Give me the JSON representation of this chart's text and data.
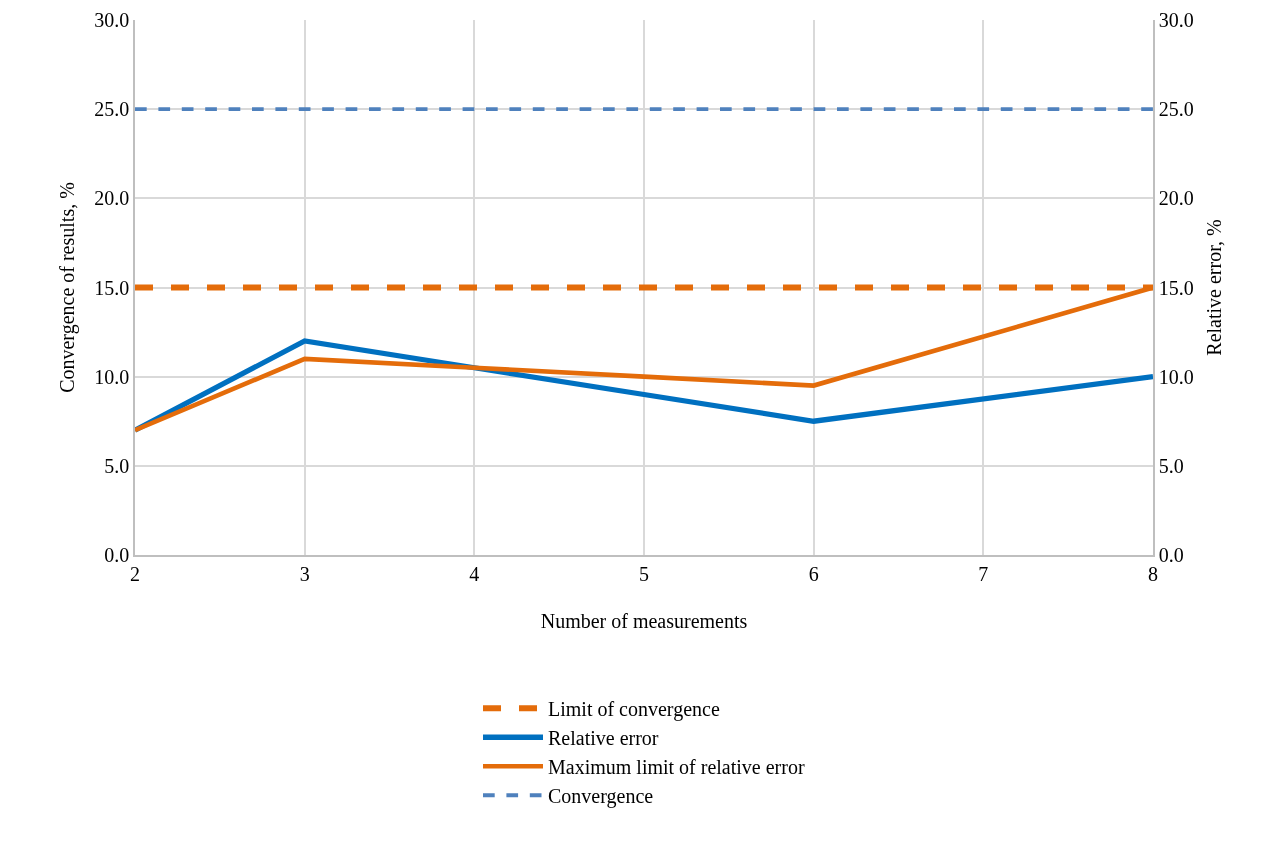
{
  "chart_data": {
    "type": "line",
    "xlabel": "Number of measurements",
    "ylabel": "Convergence of results, %",
    "y2label": "Relative error, %",
    "xlim": [
      2,
      8
    ],
    "xticks": [
      2,
      3,
      4,
      5,
      6,
      7,
      8
    ],
    "ylim": [
      0,
      30
    ],
    "yticks": [
      {
        "value": 0,
        "label": "0.0"
      },
      {
        "value": 5,
        "label": "5.0"
      },
      {
        "value": 10,
        "label": "10.0"
      },
      {
        "value": 15,
        "label": "15.0"
      },
      {
        "value": 20,
        "label": "20.0"
      },
      {
        "value": 25,
        "label": "25.0"
      },
      {
        "value": 30,
        "label": "30.0"
      }
    ],
    "y2lim": [
      0,
      30
    ],
    "y2ticks": [
      {
        "value": 0,
        "label": "0.0"
      },
      {
        "value": 5,
        "label": "5.0"
      },
      {
        "value": 10,
        "label": "10.0"
      },
      {
        "value": 15,
        "label": "15.0"
      },
      {
        "value": 20,
        "label": "20.0"
      },
      {
        "value": 25,
        "label": "25.0"
      },
      {
        "value": 30,
        "label": "30.0"
      }
    ],
    "grid": true,
    "legend": "bottom",
    "marker": "none",
    "series": [
      {
        "name": "Limit of convergence",
        "color": "#e46c0a",
        "line_style": "dashed",
        "x": [
          2,
          8
        ],
        "values": [
          15,
          15
        ]
      },
      {
        "name": "Relative error",
        "color": "#0070c0",
        "line_style": "solid",
        "axis": "y2",
        "x": [
          2,
          3,
          4,
          5,
          6,
          8
        ],
        "values": [
          7.0,
          12.0,
          10.5,
          9.0,
          7.5,
          10.0
        ]
      },
      {
        "name": "Maximum limit of relative error",
        "color": "#e46c0a",
        "line_style": "solid",
        "axis": "y2",
        "x": [
          2,
          3,
          4,
          5,
          6,
          8
        ],
        "values": [
          7.0,
          11.0,
          10.5,
          10.0,
          9.5,
          15.0
        ]
      },
      {
        "name": "Convergence",
        "color": "#4f81bd",
        "line_style": "dashed",
        "x": [
          2,
          8
        ],
        "values": [
          25,
          25
        ]
      }
    ]
  }
}
